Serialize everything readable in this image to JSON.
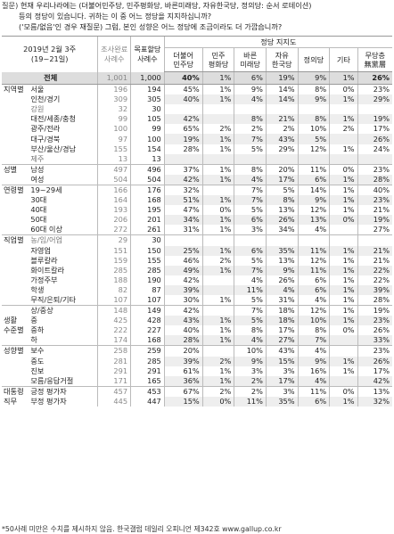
{
  "question": {
    "line1_label": "질문)",
    "line1": "현재 우리나라에는 (더불어민주당, 민주평화당, 바른미래당, 자유한국당, 정의당: 순서 로테이션)",
    "line2": "등의 정당이 있습니다. 귀하는 이 중 어느 정당을 지지하십니까?",
    "line3": "('모름/없음'인 경우 재질문) 그럼, 본인 성향은 어느 정당에 조금이라도 더 가깝습니까?"
  },
  "header": {
    "period": "2019년 2월 3주",
    "period_days": "(19~21일)",
    "sample_done": "조사완료",
    "sample_done2": "사례수",
    "sample_target": "목표할당",
    "sample_target2": "사례수",
    "group_label": "정당 지지도",
    "parties": [
      "더불어\n민주당",
      "민주\n평화당",
      "바른\n미래당",
      "자유\n한국당",
      "정의당",
      "기타",
      "무당층\n無黨層"
    ]
  },
  "total": {
    "label": "전체",
    "n1": "1,001",
    "n2": "1,000",
    "v": [
      "40%",
      "1%",
      "6%",
      "19%",
      "9%",
      "1%",
      "26%"
    ]
  },
  "sections": [
    {
      "group": "지역별",
      "rows": [
        {
          "sub": "서울",
          "n1": "196",
          "n2": "194",
          "v": [
            "45%",
            "1%",
            "9%",
            "14%",
            "8%",
            "0%",
            "23%"
          ]
        },
        {
          "sub": "인천/경기",
          "n1": "309",
          "n2": "305",
          "v": [
            "40%",
            "1%",
            "4%",
            "14%",
            "9%",
            "1%",
            "29%"
          ]
        },
        {
          "sub": "강원",
          "n1": "32",
          "n2": "30",
          "v": [
            "",
            "",
            "",
            "",
            "",
            "",
            ""
          ],
          "dim": true
        },
        {
          "sub": "대전/세종/충청",
          "n1": "99",
          "n2": "105",
          "v": [
            "42%",
            "",
            "8%",
            "21%",
            "8%",
            "1%",
            "19%"
          ]
        },
        {
          "sub": "광주/전라",
          "n1": "100",
          "n2": "99",
          "v": [
            "65%",
            "2%",
            "2%",
            "2%",
            "10%",
            "2%",
            "17%"
          ]
        },
        {
          "sub": "대구/경북",
          "n1": "97",
          "n2": "100",
          "v": [
            "19%",
            "1%",
            "7%",
            "43%",
            "5%",
            "",
            "26%"
          ]
        },
        {
          "sub": "부산/울산/경남",
          "n1": "155",
          "n2": "154",
          "v": [
            "28%",
            "1%",
            "5%",
            "29%",
            "12%",
            "1%",
            "24%"
          ]
        },
        {
          "sub": "제주",
          "n1": "13",
          "n2": "13",
          "v": [
            "",
            "",
            "",
            "",
            "",
            "",
            ""
          ],
          "dim": true
        }
      ]
    },
    {
      "group": "성별",
      "rows": [
        {
          "sub": "남성",
          "n1": "497",
          "n2": "496",
          "v": [
            "37%",
            "1%",
            "8%",
            "20%",
            "11%",
            "0%",
            "23%"
          ]
        },
        {
          "sub": "여성",
          "n1": "504",
          "n2": "504",
          "v": [
            "42%",
            "1%",
            "4%",
            "17%",
            "6%",
            "1%",
            "28%"
          ]
        }
      ]
    },
    {
      "group": "연령별",
      "rows": [
        {
          "sub": "19~29세",
          "n1": "166",
          "n2": "176",
          "v": [
            "32%",
            "",
            "7%",
            "5%",
            "14%",
            "1%",
            "40%"
          ]
        },
        {
          "sub": "30대",
          "n1": "164",
          "n2": "168",
          "v": [
            "51%",
            "1%",
            "7%",
            "8%",
            "9%",
            "1%",
            "23%"
          ]
        },
        {
          "sub": "40대",
          "n1": "193",
          "n2": "195",
          "v": [
            "47%",
            "0%",
            "5%",
            "13%",
            "12%",
            "1%",
            "21%"
          ]
        },
        {
          "sub": "50대",
          "n1": "206",
          "n2": "201",
          "v": [
            "34%",
            "1%",
            "6%",
            "26%",
            "13%",
            "0%",
            "19%"
          ]
        },
        {
          "sub": "60대 이상",
          "n1": "272",
          "n2": "261",
          "v": [
            "31%",
            "1%",
            "3%",
            "34%",
            "4%",
            "",
            "27%"
          ]
        }
      ]
    },
    {
      "group": "직업별",
      "rows": [
        {
          "sub": "농/임/어업",
          "n1": "29",
          "n2": "30",
          "v": [
            "",
            "",
            "",
            "",
            "",
            "",
            ""
          ],
          "dim": true
        },
        {
          "sub": "자영업",
          "n1": "151",
          "n2": "150",
          "v": [
            "25%",
            "1%",
            "6%",
            "35%",
            "11%",
            "1%",
            "21%"
          ]
        },
        {
          "sub": "블루칼라",
          "n1": "159",
          "n2": "155",
          "v": [
            "46%",
            "2%",
            "5%",
            "13%",
            "12%",
            "1%",
            "21%"
          ]
        },
        {
          "sub": "화이트칼라",
          "n1": "285",
          "n2": "285",
          "v": [
            "49%",
            "1%",
            "7%",
            "9%",
            "11%",
            "1%",
            "22%"
          ]
        },
        {
          "sub": "가정주부",
          "n1": "188",
          "n2": "190",
          "v": [
            "42%",
            "",
            "4%",
            "26%",
            "6%",
            "1%",
            "22%"
          ]
        },
        {
          "sub": "학생",
          "n1": "82",
          "n2": "87",
          "v": [
            "39%",
            "",
            "11%",
            "4%",
            "6%",
            "1%",
            "39%"
          ]
        },
        {
          "sub": "무직/은퇴/기타",
          "n1": "107",
          "n2": "107",
          "v": [
            "30%",
            "1%",
            "5%",
            "31%",
            "4%",
            "1%",
            "28%"
          ]
        }
      ]
    },
    {
      "group": "생활\n수준별",
      "rows": [
        {
          "sub": "상/중상",
          "n1": "148",
          "n2": "149",
          "v": [
            "42%",
            "",
            "7%",
            "18%",
            "12%",
            "1%",
            "19%"
          ]
        },
        {
          "sub": "중",
          "n1": "425",
          "n2": "428",
          "v": [
            "43%",
            "1%",
            "5%",
            "18%",
            "10%",
            "1%",
            "23%"
          ]
        },
        {
          "sub": "중하",
          "n1": "222",
          "n2": "227",
          "v": [
            "40%",
            "1%",
            "8%",
            "17%",
            "8%",
            "0%",
            "26%"
          ]
        },
        {
          "sub": "하",
          "n1": "174",
          "n2": "168",
          "v": [
            "28%",
            "1%",
            "4%",
            "27%",
            "7%",
            "",
            "33%"
          ]
        }
      ]
    },
    {
      "group": "성향별",
      "rows": [
        {
          "sub": "보수",
          "n1": "258",
          "n2": "259",
          "v": [
            "20%",
            "",
            "10%",
            "43%",
            "4%",
            "",
            "23%"
          ]
        },
        {
          "sub": "중도",
          "n1": "281",
          "n2": "285",
          "v": [
            "39%",
            "2%",
            "9%",
            "15%",
            "9%",
            "1%",
            "26%"
          ]
        },
        {
          "sub": "진보",
          "n1": "291",
          "n2": "291",
          "v": [
            "61%",
            "1%",
            "3%",
            "3%",
            "16%",
            "1%",
            "17%"
          ]
        },
        {
          "sub": "모름/응답거절",
          "n1": "171",
          "n2": "165",
          "v": [
            "36%",
            "1%",
            "2%",
            "17%",
            "4%",
            "",
            "42%"
          ]
        }
      ]
    },
    {
      "group": "대통령\n직무",
      "rows": [
        {
          "sub": "긍정 평가자",
          "n1": "457",
          "n2": "453",
          "v": [
            "67%",
            "2%",
            "2%",
            "3%",
            "11%",
            "0%",
            "13%"
          ]
        },
        {
          "sub": "부정 평가자",
          "n1": "445",
          "n2": "447",
          "v": [
            "15%",
            "0%",
            "11%",
            "35%",
            "6%",
            "1%",
            "32%"
          ]
        }
      ]
    }
  ],
  "footnote": "*50사례 미만은 수치를 제시하지 않음. 한국갤럽 데일리 오피니언 제342호 www.gallup.co.kr"
}
